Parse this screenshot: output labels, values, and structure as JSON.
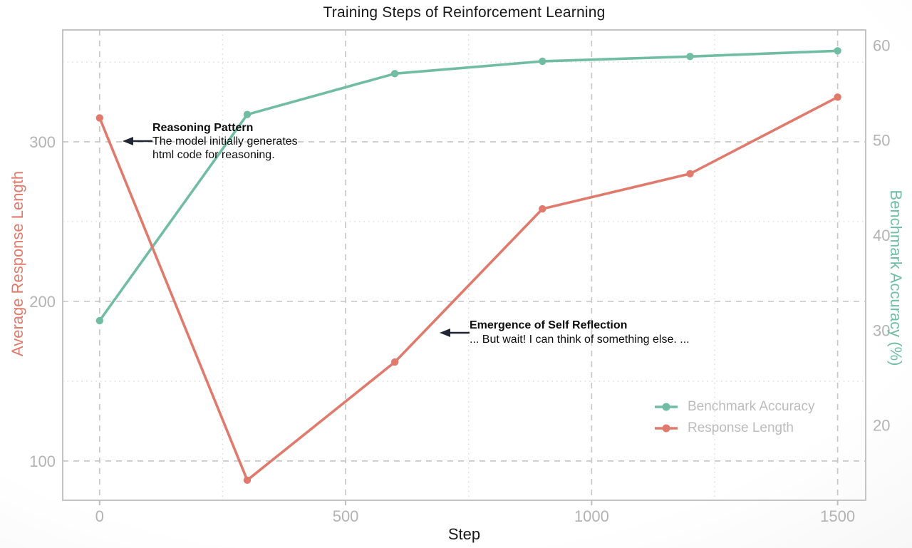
{
  "title": "Training Steps of Reinforcement Learning",
  "x_axis": {
    "label": "Step"
  },
  "y_axis_left": {
    "label": "Average Response Length"
  },
  "y_axis_right": {
    "label": "Benchmark Accuracy (%)"
  },
  "annotations": [
    {
      "title": "Reasoning Pattern",
      "lines": [
        "The model initially generates",
        "html code for reasoning."
      ]
    },
    {
      "title": "Emergence of Self Reflection",
      "lines": [
        "... But wait! I can think of something else. ..."
      ]
    }
  ],
  "colors": {
    "benchmark_accuracy": "#70bda4",
    "response_length": "#e07a6c",
    "tick_labels": "#b3b3b3",
    "legend_text": "#bcbcbc",
    "grid_major": "#c8c8c8",
    "grid_minor": "#dadada",
    "annotation_arrow": "#202636",
    "title_text": "#1a1a1a"
  },
  "chart_data": {
    "type": "line",
    "title": "Training Steps of Reinforcement Learning",
    "xlabel": "Step",
    "ylabel_left": "Average Response Length",
    "ylabel_right": "Benchmark Accuracy (%)",
    "x": [
      0,
      300,
      600,
      900,
      1200,
      1500
    ],
    "series": [
      {
        "name": "Benchmark Accuracy",
        "axis": "right",
        "color": "#70bda4",
        "values": [
          31,
          52.7,
          57,
          58.3,
          58.8,
          59.4
        ]
      },
      {
        "name": "Response Length",
        "axis": "left",
        "color": "#e07a6c",
        "values": [
          315,
          88,
          162,
          258,
          280,
          328
        ]
      }
    ],
    "xlim": [
      -75,
      1557
    ],
    "ylim_left": [
      75.4,
      370.1
    ],
    "ylim_right": [
      12.1,
      61.6
    ],
    "x_ticks": [
      0,
      500,
      1000,
      1500
    ],
    "x_minor_ticks": [
      250,
      750,
      1250
    ],
    "y_left_ticks": [
      100,
      200,
      300
    ],
    "y_left_minor_ticks": [
      150,
      250,
      350
    ],
    "y_right_ticks": [
      20,
      30,
      40,
      50,
      60
    ],
    "grid": "major dashed gridlines at x-ticks and left-y ticks; minor dotted gridlines at midpoints; no gridlines for right-y ticks",
    "legend_position": "lower right, no frame",
    "layout": {
      "box": {
        "l": 88,
        "t": 42,
        "r": 1215,
        "b": 702
      }
    }
  }
}
